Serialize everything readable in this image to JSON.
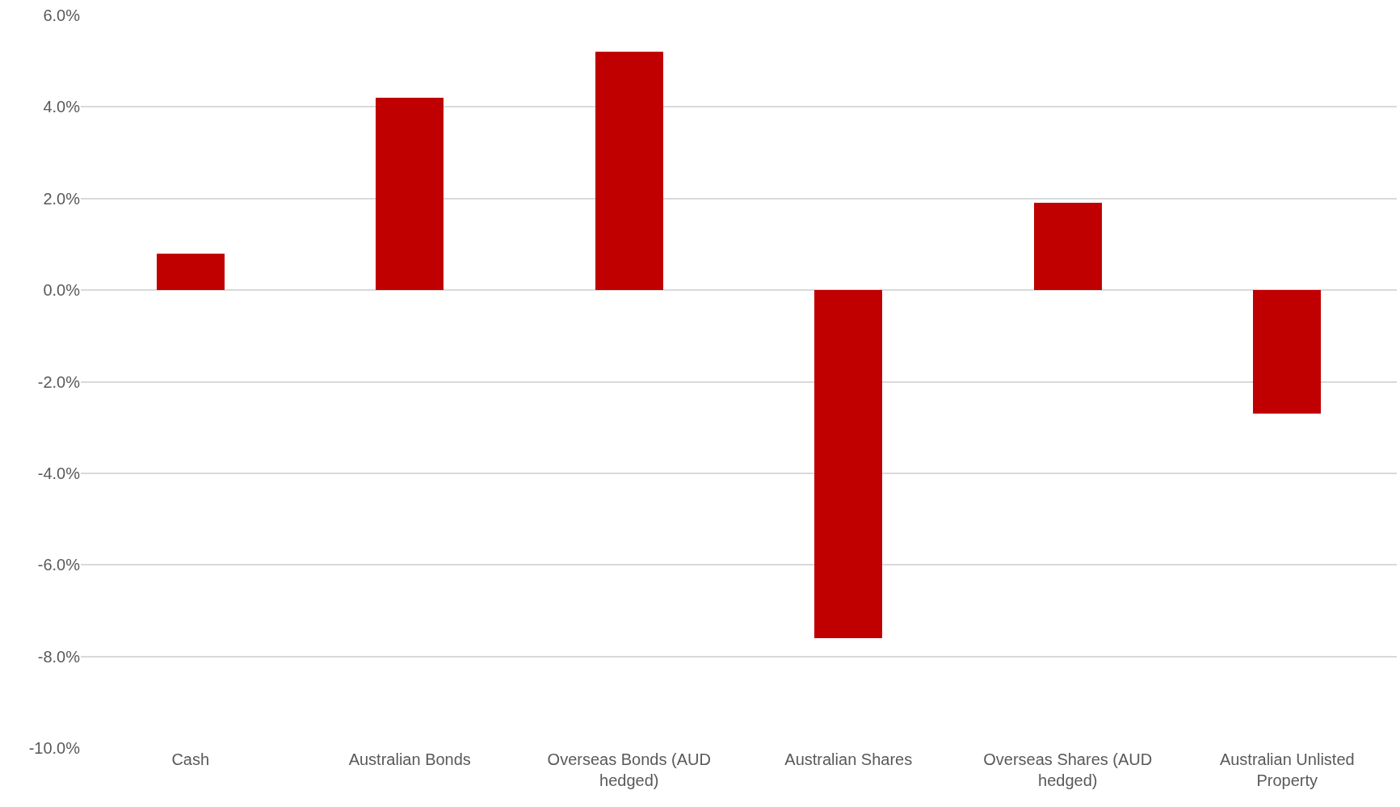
{
  "chart_data": {
    "type": "bar",
    "categories": [
      "Cash",
      "Australian Bonds",
      "Overseas Bonds (AUD hedged)",
      "Australian Shares",
      "Overseas Shares (AUD hedged)",
      "Australian Unlisted Property"
    ],
    "values": [
      0.8,
      4.2,
      5.2,
      -7.6,
      1.9,
      -2.7
    ],
    "color": "#c00000",
    "ylim": [
      -10,
      6
    ],
    "yticks": [
      {
        "value": 6,
        "label": "6.0%"
      },
      {
        "value": 4,
        "label": "4.0%"
      },
      {
        "value": 2,
        "label": "2.0%"
      },
      {
        "value": 0,
        "label": "0.0%"
      },
      {
        "value": -2,
        "label": "-2.0%"
      },
      {
        "value": -4,
        "label": "-4.0%"
      },
      {
        "value": -6,
        "label": "-6.0%"
      },
      {
        "value": -8,
        "label": "-8.0%"
      },
      {
        "value": -10,
        "label": "-10.0%"
      }
    ],
    "grid": "y"
  }
}
